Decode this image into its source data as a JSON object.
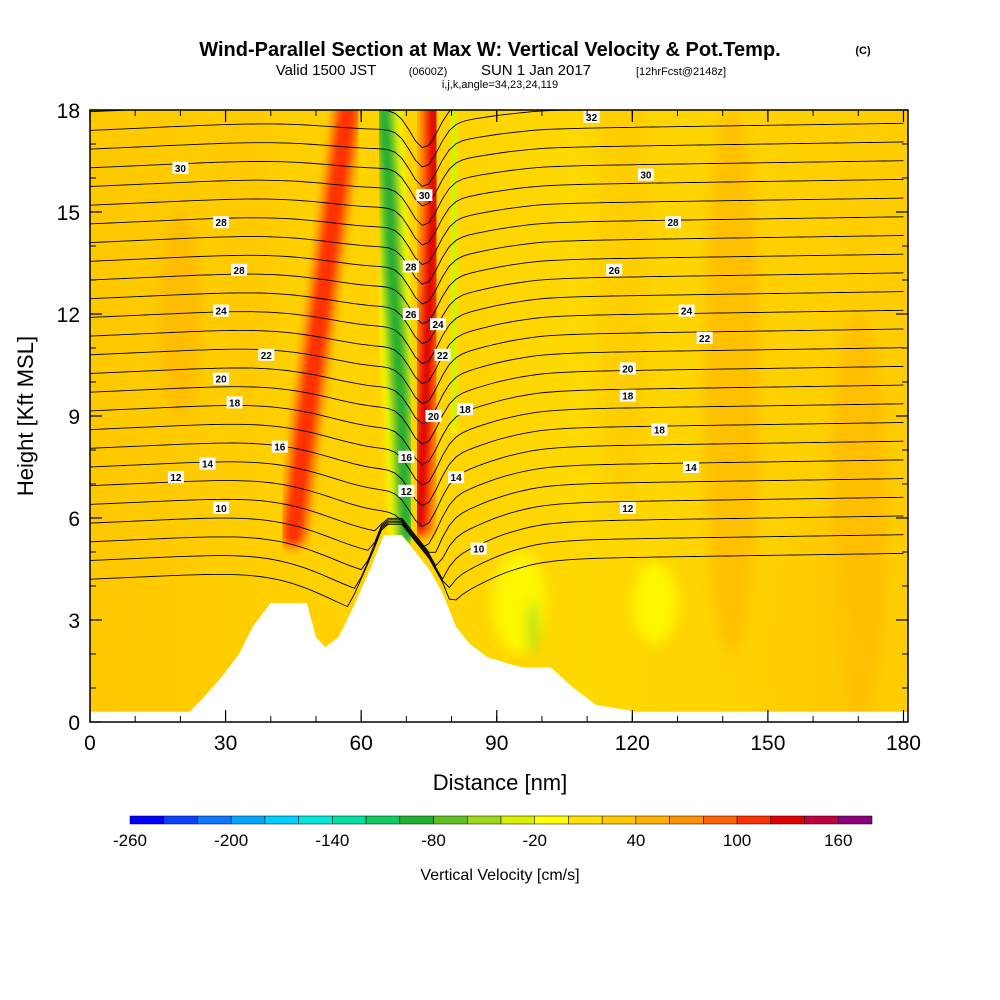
{
  "header": {
    "title": "Wind-Parallel Section at Max W: Vertical Velocity & Pot.Temp.",
    "copyright": "(C)",
    "valid_prefix": "Valid 1500 JST",
    "valid_utc": "(0600Z)",
    "valid_date": "SUN 1 Jan 2017",
    "forecast": "[12hrFcst@2148z]",
    "indices": "i,j,k,angle=34,23,24,119"
  },
  "chart_data": {
    "type": "heatmap",
    "title": "Wind-Parallel Section at Max W: Vertical Velocity & Pot.Temp.",
    "xlabel": "Distance [nm]",
    "ylabel": "Height [Kft MSL]",
    "xlim": [
      0,
      181
    ],
    "ylim": [
      0,
      18
    ],
    "xticks": [
      0,
      30,
      60,
      90,
      120,
      150,
      180
    ],
    "yticks": [
      0,
      3,
      6,
      9,
      12,
      15,
      18
    ],
    "grid": false,
    "colorbar": {
      "label": "Vertical Velocity [cm/s]",
      "placement": "bottom",
      "range": [
        -260,
        180
      ],
      "tick_values": [
        -260,
        -200,
        -140,
        -80,
        -20,
        40,
        100,
        160
      ],
      "bins": [
        {
          "from": -260,
          "to": -240,
          "color": "#0000ff"
        },
        {
          "from": -240,
          "to": -220,
          "color": "#0a40ff"
        },
        {
          "from": -220,
          "to": -200,
          "color": "#0c78ff"
        },
        {
          "from": -200,
          "to": -180,
          "color": "#00a8ff"
        },
        {
          "from": -180,
          "to": -160,
          "color": "#00d0ff"
        },
        {
          "from": -160,
          "to": -140,
          "color": "#00e8d8"
        },
        {
          "from": -140,
          "to": -120,
          "color": "#00e0a0"
        },
        {
          "from": -120,
          "to": -100,
          "color": "#10cc60"
        },
        {
          "from": -100,
          "to": -80,
          "color": "#20b030"
        },
        {
          "from": -80,
          "to": -60,
          "color": "#60c020"
        },
        {
          "from": -60,
          "to": -40,
          "color": "#a0d818"
        },
        {
          "from": -40,
          "to": -20,
          "color": "#d8f000"
        },
        {
          "from": -20,
          "to": 0,
          "color": "#ffff00"
        },
        {
          "from": 0,
          "to": 20,
          "color": "#ffe000"
        },
        {
          "from": 20,
          "to": 40,
          "color": "#ffc800"
        },
        {
          "from": 40,
          "to": 60,
          "color": "#ffb000"
        },
        {
          "from": 60,
          "to": 80,
          "color": "#ff9000"
        },
        {
          "from": 80,
          "to": 100,
          "color": "#ff6000"
        },
        {
          "from": 100,
          "to": 120,
          "color": "#ff3000"
        },
        {
          "from": 120,
          "to": 140,
          "color": "#e00000"
        },
        {
          "from": 140,
          "to": 160,
          "color": "#c00040"
        },
        {
          "from": 160,
          "to": 180,
          "color": "#8c0080"
        }
      ]
    },
    "vertical_velocity_features": [
      {
        "kind": "updraft",
        "path": [
          [
            45,
            5.5
          ],
          [
            48,
            9
          ],
          [
            52,
            13
          ],
          [
            55,
            16
          ],
          [
            57,
            18
          ]
        ],
        "peak": 100
      },
      {
        "kind": "downdraft",
        "path": [
          [
            70,
            5.5
          ],
          [
            69,
            9
          ],
          [
            67,
            13
          ],
          [
            66,
            16
          ],
          [
            65,
            18
          ]
        ],
        "peak": -100
      },
      {
        "kind": "updraft",
        "path": [
          [
            73,
            5.8
          ],
          [
            74,
            9
          ],
          [
            75,
            12
          ],
          [
            76,
            15
          ],
          [
            76,
            18
          ]
        ],
        "peak": 120
      },
      {
        "kind": "downdraft",
        "path": [
          [
            81,
            9
          ],
          [
            81,
            13
          ],
          [
            80,
            16
          ],
          [
            80,
            18
          ]
        ],
        "peak": -40
      }
    ],
    "terrain_profile": {
      "x": [
        0,
        22,
        25,
        27,
        29,
        33,
        36,
        40,
        48,
        50,
        52,
        55,
        58,
        62,
        65,
        69,
        72,
        75,
        78,
        81,
        84,
        88,
        93,
        96,
        102,
        107,
        112,
        121,
        181
      ],
      "height": [
        0.3,
        0.3,
        0.7,
        1.0,
        1.3,
        2.0,
        2.8,
        3.5,
        3.5,
        2.5,
        2.2,
        2.5,
        3.3,
        4.5,
        5.5,
        5.5,
        5.0,
        4.5,
        3.8,
        2.8,
        2.3,
        1.9,
        1.7,
        1.6,
        1.6,
        1.0,
        0.5,
        0.3,
        0.3
      ]
    },
    "potential_temperature_contour_labels": [
      {
        "text": "10",
        "x": 29,
        "y": 6.3
      },
      {
        "text": "12",
        "x": 19,
        "y": 7.2
      },
      {
        "text": "14",
        "x": 26,
        "y": 7.6
      },
      {
        "text": "16",
        "x": 42,
        "y": 8.1
      },
      {
        "text": "18",
        "x": 32,
        "y": 9.4
      },
      {
        "text": "20",
        "x": 29,
        "y": 10.1
      },
      {
        "text": "22",
        "x": 39,
        "y": 10.8
      },
      {
        "text": "24",
        "x": 29,
        "y": 12.1
      },
      {
        "text": "28",
        "x": 33,
        "y": 13.3
      },
      {
        "text": "28",
        "x": 29,
        "y": 14.7
      },
      {
        "text": "30",
        "x": 20,
        "y": 16.3
      },
      {
        "text": "12",
        "x": 70,
        "y": 6.8
      },
      {
        "text": "16",
        "x": 70,
        "y": 7.8
      },
      {
        "text": "20",
        "x": 76,
        "y": 9.0
      },
      {
        "text": "22",
        "x": 78,
        "y": 10.8
      },
      {
        "text": "24",
        "x": 77,
        "y": 11.7
      },
      {
        "text": "26",
        "x": 71,
        "y": 12.0
      },
      {
        "text": "28",
        "x": 71,
        "y": 13.4
      },
      {
        "text": "30",
        "x": 74,
        "y": 15.5
      },
      {
        "text": "10",
        "x": 86,
        "y": 5.1
      },
      {
        "text": "14",
        "x": 81,
        "y": 7.2
      },
      {
        "text": "18",
        "x": 83,
        "y": 9.2
      },
      {
        "text": "32",
        "x": 111,
        "y": 17.8
      },
      {
        "text": "30",
        "x": 123,
        "y": 16.1
      },
      {
        "text": "28",
        "x": 129,
        "y": 14.7
      },
      {
        "text": "26",
        "x": 116,
        "y": 13.3
      },
      {
        "text": "24",
        "x": 132,
        "y": 12.1
      },
      {
        "text": "22",
        "x": 136,
        "y": 11.3
      },
      {
        "text": "20",
        "x": 119,
        "y": 10.4
      },
      {
        "text": "18",
        "x": 119,
        "y": 9.6
      },
      {
        "text": "18",
        "x": 126,
        "y": 8.6
      },
      {
        "text": "14",
        "x": 133,
        "y": 7.5
      },
      {
        "text": "12",
        "x": 119,
        "y": 6.3
      }
    ]
  }
}
